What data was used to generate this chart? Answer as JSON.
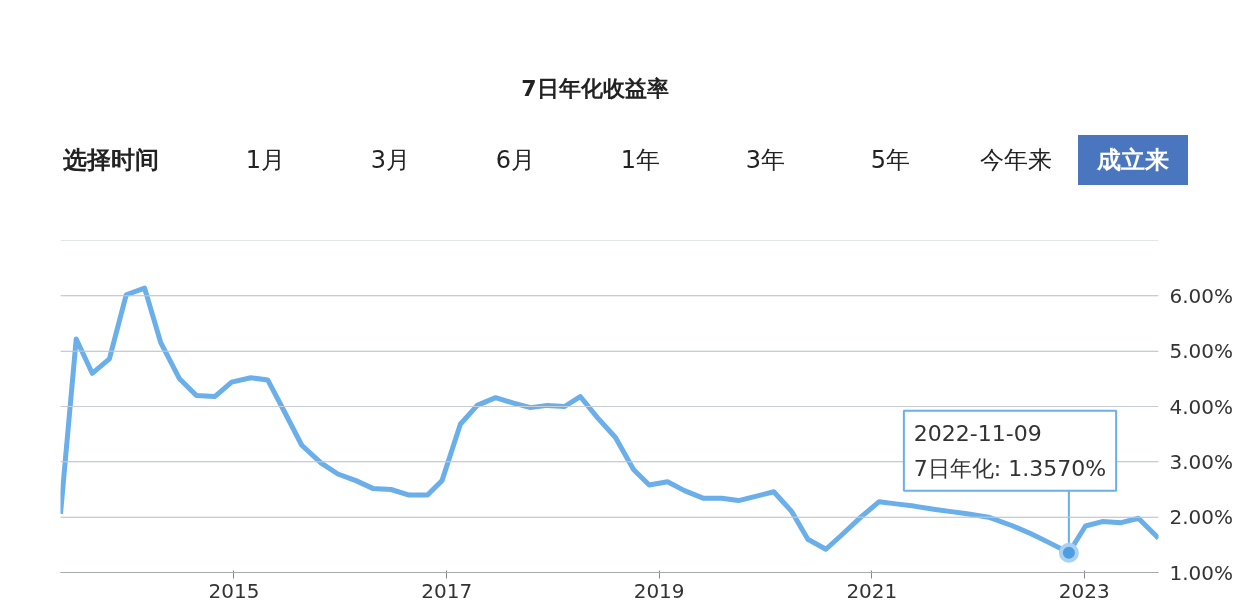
{
  "chart_data": {
    "type": "line",
    "title": "7日年化收益率",
    "x": [
      "2013-05-15",
      "2013-07-08",
      "2013-09-01",
      "2013-10-30",
      "2013-12-27",
      "2014-02-28",
      "2014-04-24",
      "2014-06-28",
      "2014-08-25",
      "2014-10-27",
      "2014-12-24",
      "2015-02-28",
      "2015-04-27",
      "2015-06-24",
      "2015-08-22",
      "2015-10-27",
      "2015-12-24",
      "2016-02-24",
      "2016-04-22",
      "2016-06-24",
      "2016-08-25",
      "2016-10-27",
      "2016-12-16",
      "2017-02-17",
      "2017-04-16",
      "2017-06-18",
      "2017-08-19",
      "2017-10-16",
      "2017-12-13",
      "2018-02-10",
      "2018-04-05",
      "2018-06-03",
      "2018-08-04",
      "2018-10-05",
      "2018-11-28",
      "2019-01-30",
      "2019-03-29",
      "2019-06-03",
      "2019-08-04",
      "2019-10-01",
      "2019-12-02",
      "2020-01-30",
      "2020-04-01",
      "2020-05-26",
      "2020-07-27",
      "2020-09-24",
      "2020-11-24",
      "2021-01-26",
      "2021-03-25",
      "2021-05-26",
      "2021-08-07",
      "2021-10-01",
      "2021-11-24",
      "2022-02-06",
      "2022-05-01",
      "2022-07-02",
      "2022-09-02",
      "2022-11-09",
      "2023-01-05",
      "2023-03-04",
      "2023-05-08",
      "2023-07-06",
      "2023-09-13"
    ],
    "series": [
      {
        "color": "#6aaeea",
        "values": [
          2.06,
          5.22,
          4.6,
          4.86,
          6.02,
          6.14,
          5.16,
          4.5,
          4.2,
          4.18,
          4.44,
          4.52,
          4.48,
          3.9,
          3.3,
          2.98,
          2.78,
          2.66,
          2.52,
          2.5,
          2.4,
          2.4,
          2.66,
          3.68,
          4.02,
          4.16,
          4.06,
          3.98,
          4.02,
          4.0,
          4.18,
          3.8,
          3.44,
          2.86,
          2.58,
          2.64,
          2.48,
          2.34,
          2.34,
          2.3,
          2.38,
          2.46,
          2.1,
          1.6,
          1.42,
          1.7,
          2.0,
          2.28,
          2.24,
          2.2,
          2.14,
          2.1,
          2.06,
          2.0,
          1.84,
          1.7,
          1.54,
          1.357,
          1.84,
          1.92,
          1.9,
          1.98,
          1.62
        ]
      }
    ],
    "xlim": [
      "2013-05-15",
      "2023-09-13"
    ],
    "xticks": [
      {
        "value": "2015-01-01",
        "label": "2015"
      },
      {
        "value": "2017-01-01",
        "label": "2017"
      },
      {
        "value": "2019-01-01",
        "label": "2019"
      },
      {
        "value": "2021-01-01",
        "label": "2021"
      },
      {
        "value": "2023-01-01",
        "label": "2023"
      }
    ],
    "ylim": [
      1,
      7
    ],
    "yticks": [
      {
        "value": 1,
        "label": "1.00%"
      },
      {
        "value": 2,
        "label": "2.00%"
      },
      {
        "value": 3,
        "label": "3.00%"
      },
      {
        "value": 4,
        "label": "4.00%"
      },
      {
        "value": 5,
        "label": "5.00%"
      },
      {
        "value": 6,
        "label": "6.00%"
      },
      {
        "value": 7,
        "label": null
      }
    ],
    "grid": "y",
    "marker": "none",
    "line_style": "solid",
    "annotations": [
      "选择时间",
      "1月",
      "3月",
      "6月",
      "1年",
      "3年",
      "5年",
      "今年来",
      "成立来",
      {
        "text": "2022-11-09\n7日年化: 1.3570%",
        "x": "2022-11-09",
        "y": 1.357
      }
    ]
  }
}
